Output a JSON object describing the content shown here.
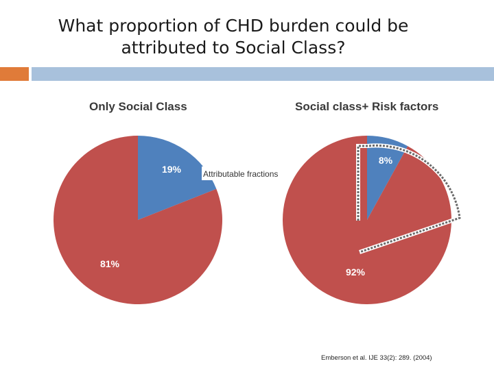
{
  "slide": {
    "title_line1": "What proportion of CHD burden could be",
    "title_line2": "attributed to Social Class?",
    "annotation": "Attributable fractions",
    "citation": "Emberson et al. IJE 33(2): 289. (2004)"
  },
  "colors": {
    "blue": "#4f81bd",
    "red": "#c0504d",
    "accent_orange": "#e07b39",
    "accent_blue": "#a8c1dc"
  },
  "chart_data": [
    {
      "type": "pie",
      "title": "Only Social Class",
      "slices": [
        {
          "label": "19%",
          "value": 19,
          "color": "#4f81bd"
        },
        {
          "label": "81%",
          "value": 81,
          "color": "#c0504d"
        }
      ]
    },
    {
      "type": "pie",
      "title": "Social class+ Risk factors",
      "slices": [
        {
          "label": "8%",
          "value": 8,
          "color": "#4f81bd"
        },
        {
          "label": "92%",
          "value": 92,
          "color": "#c0504d"
        }
      ]
    }
  ]
}
